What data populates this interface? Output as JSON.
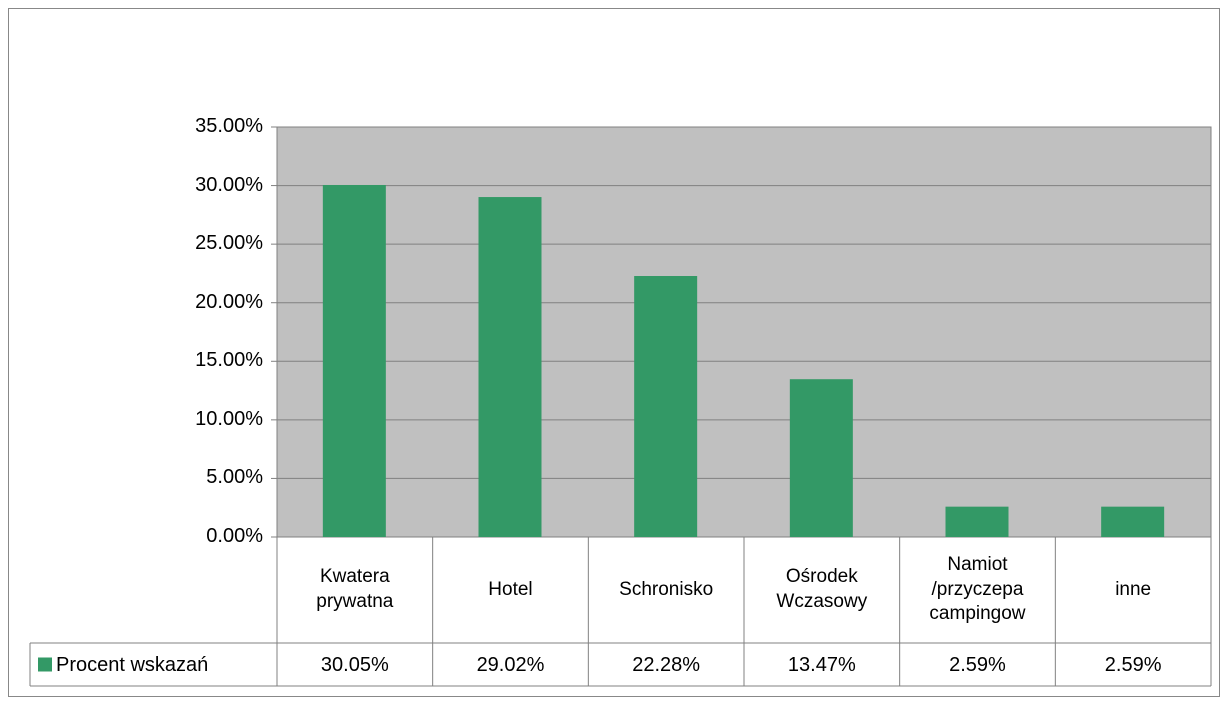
{
  "chart_data": {
    "type": "bar",
    "categories": [
      "Kwatera\nprywatna",
      "Hotel",
      "Schronisko",
      "Ośrodek\nWczasowy",
      "Namiot\n/przyczepa\ncampingow",
      "inne"
    ],
    "series": [
      {
        "name": "Procent wskazań",
        "color": "#339966",
        "values": [
          30.05,
          29.02,
          22.28,
          13.47,
          2.59,
          2.59
        ],
        "value_labels": [
          "30.05%",
          "29.02%",
          "22.28%",
          "13.47%",
          "2.59%",
          "2.59%"
        ]
      }
    ],
    "ylim": [
      0,
      35
    ],
    "yticks": [
      {
        "value": 0,
        "label": "0.00%"
      },
      {
        "value": 5,
        "label": "5.00%"
      },
      {
        "value": 10,
        "label": "10.00%"
      },
      {
        "value": 15,
        "label": "15.00%"
      },
      {
        "value": 20,
        "label": "20.00%"
      },
      {
        "value": 25,
        "label": "25.00%"
      },
      {
        "value": 30,
        "label": "30.00%"
      },
      {
        "value": 35,
        "label": "35.00%"
      }
    ],
    "grid": true,
    "plot_background": "#c0c0c0"
  }
}
